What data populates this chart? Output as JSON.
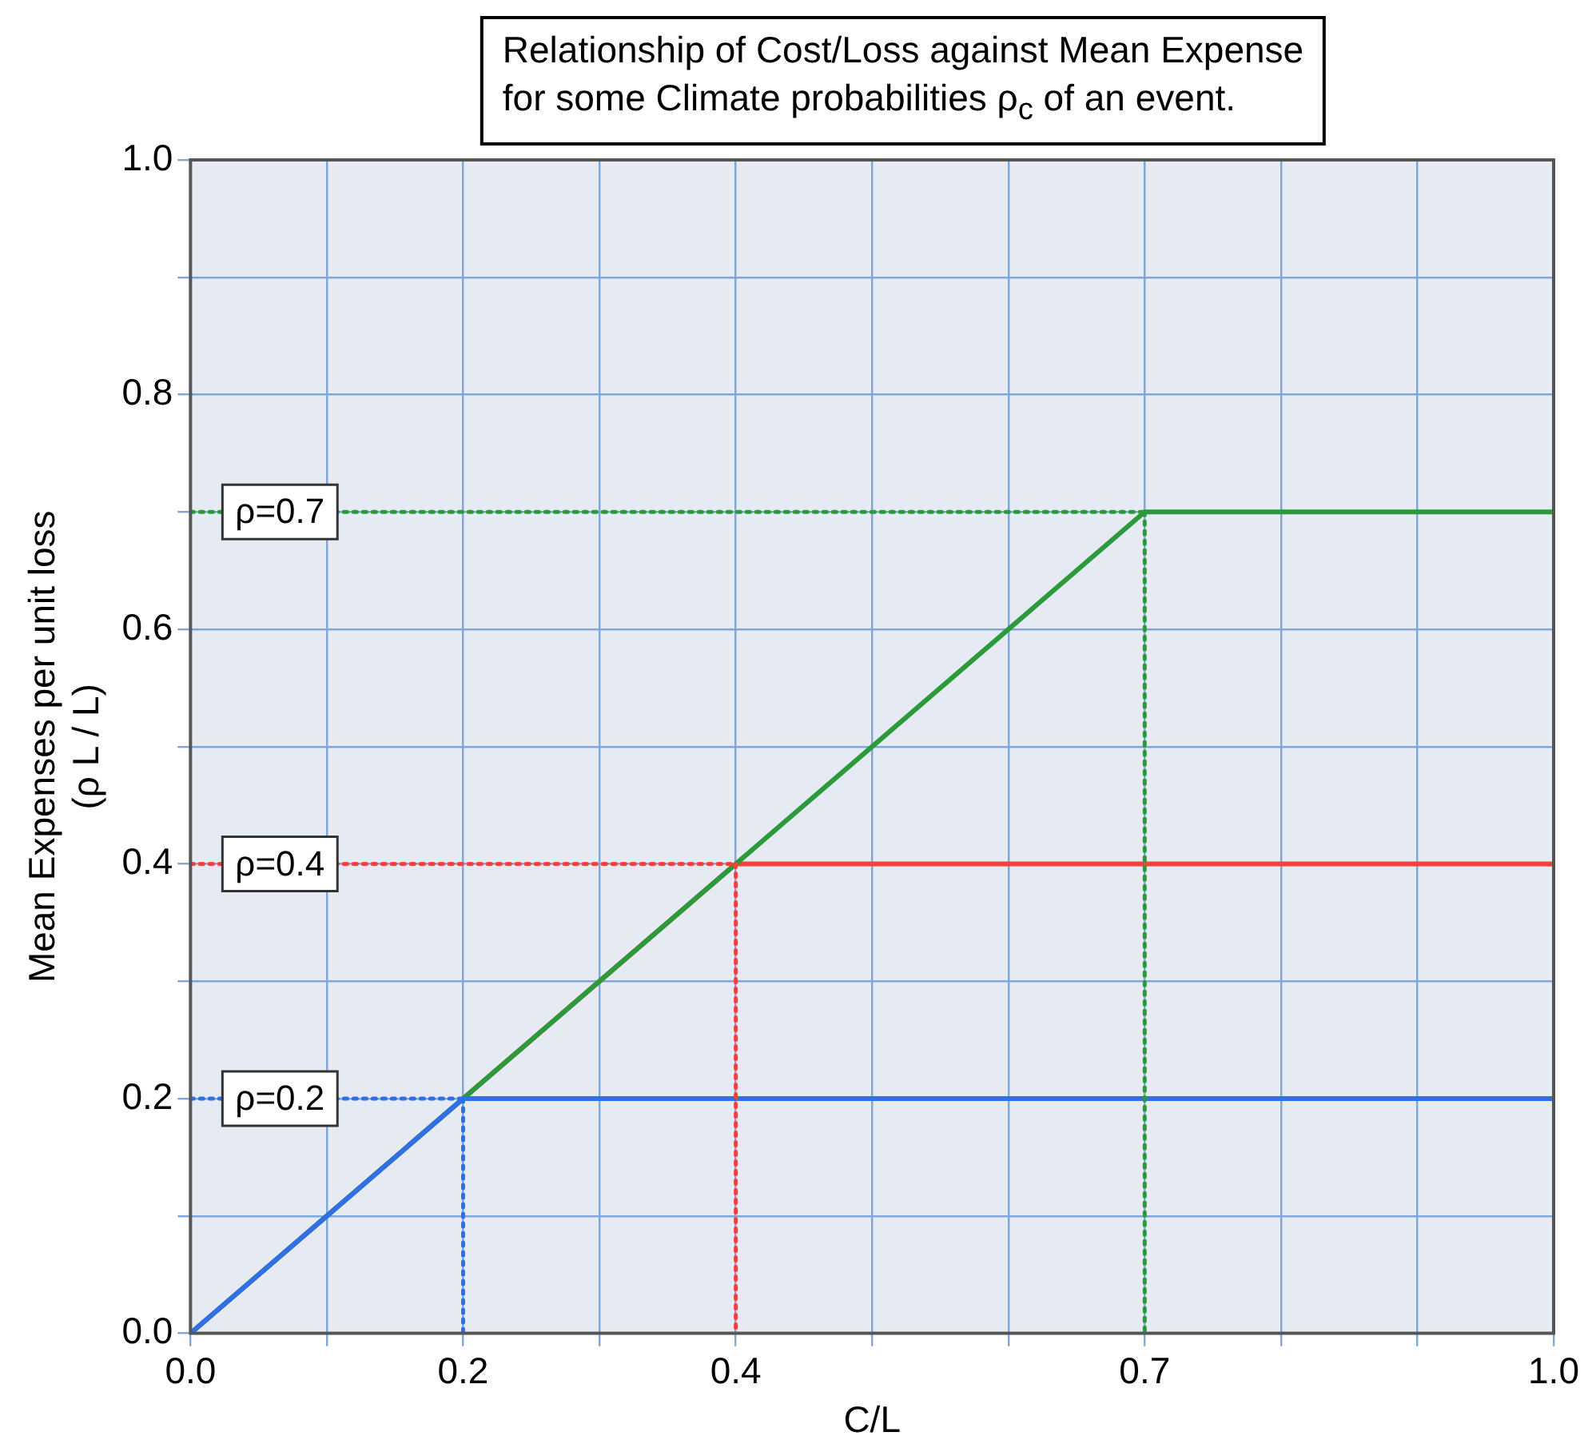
{
  "chart_data": {
    "type": "line",
    "title": "Relationship of Cost/Loss against Mean Expense\nfor some Climate probabilities ρ$_{c}$ of an event.",
    "xlabel": "C/L",
    "ylabel": "Mean Expenses per unit loss\n(ρ L / L)",
    "xlim": [
      0,
      1
    ],
    "ylim": [
      0,
      1
    ],
    "xticks": [
      {
        "value": 0,
        "label": "0.0"
      },
      {
        "value": 0.1,
        "label": null
      },
      0.2,
      {
        "value": 0.3,
        "label": null
      },
      0.4,
      {
        "value": 0.5,
        "label": null
      },
      {
        "value": 0.6,
        "label": null
      },
      0.7,
      {
        "value": 0.8,
        "label": null
      },
      {
        "value": 0.9,
        "label": null
      },
      {
        "value": 1,
        "label": "1.0"
      }
    ],
    "yticks": [
      {
        "value": 0,
        "label": "0.0"
      },
      {
        "value": 0.1,
        "label": null
      },
      0.2,
      {
        "value": 0.3,
        "label": null
      },
      0.4,
      {
        "value": 0.5,
        "label": null
      },
      0.6,
      {
        "value": 0.7,
        "label": null
      },
      0.8,
      {
        "value": 0.9,
        "label": null
      },
      {
        "value": 1,
        "label": "1.0"
      }
    ],
    "grid": true,
    "legend": false,
    "marker": "none",
    "series": [
      {
        "name": "ρ=0.2",
        "color": "#2f6fe8",
        "x": [
          0,
          0.2
        ],
        "values": [
          0.2,
          0.2
        ],
        "line_style": "dotted"
      },
      {
        "color": "#2f6fe8",
        "x": [
          0.2,
          0.2
        ],
        "values": [
          0.2,
          0
        ],
        "line_style": "dotted"
      },
      {
        "name": "ρ=0.4",
        "color": "#f0443a",
        "x": [
          0,
          0.4
        ],
        "values": [
          0.4,
          0.4
        ],
        "line_style": "dotted"
      },
      {
        "color": "#f0443a",
        "x": [
          0.4,
          0.4
        ],
        "values": [
          0.4,
          0
        ],
        "line_style": "dotted"
      },
      {
        "name": "ρ=0.7",
        "color": "#2a9a3a",
        "x": [
          0,
          0.7
        ],
        "values": [
          0.7,
          0.7
        ],
        "line_style": "dotted"
      },
      {
        "color": "#2a9a3a",
        "x": [
          0.7,
          0.7
        ],
        "values": [
          0.7,
          0
        ],
        "line_style": "dotted"
      },
      {
        "color": "#2f6fe8",
        "x": [
          0,
          0.2,
          1
        ],
        "values": [
          0,
          0.2,
          0.2
        ],
        "line_style": "solid"
      },
      {
        "color": "#2a9a3a",
        "x": [
          0,
          0.7,
          1
        ],
        "values": [
          0,
          0.7,
          0.7
        ],
        "line_style": "solid"
      },
      {
        "color": "#f0443a",
        "x": [
          0,
          0.4,
          1
        ],
        "values": [
          0,
          0.4,
          0.4
        ],
        "line_style": "solid"
      }
    ]
  }
}
